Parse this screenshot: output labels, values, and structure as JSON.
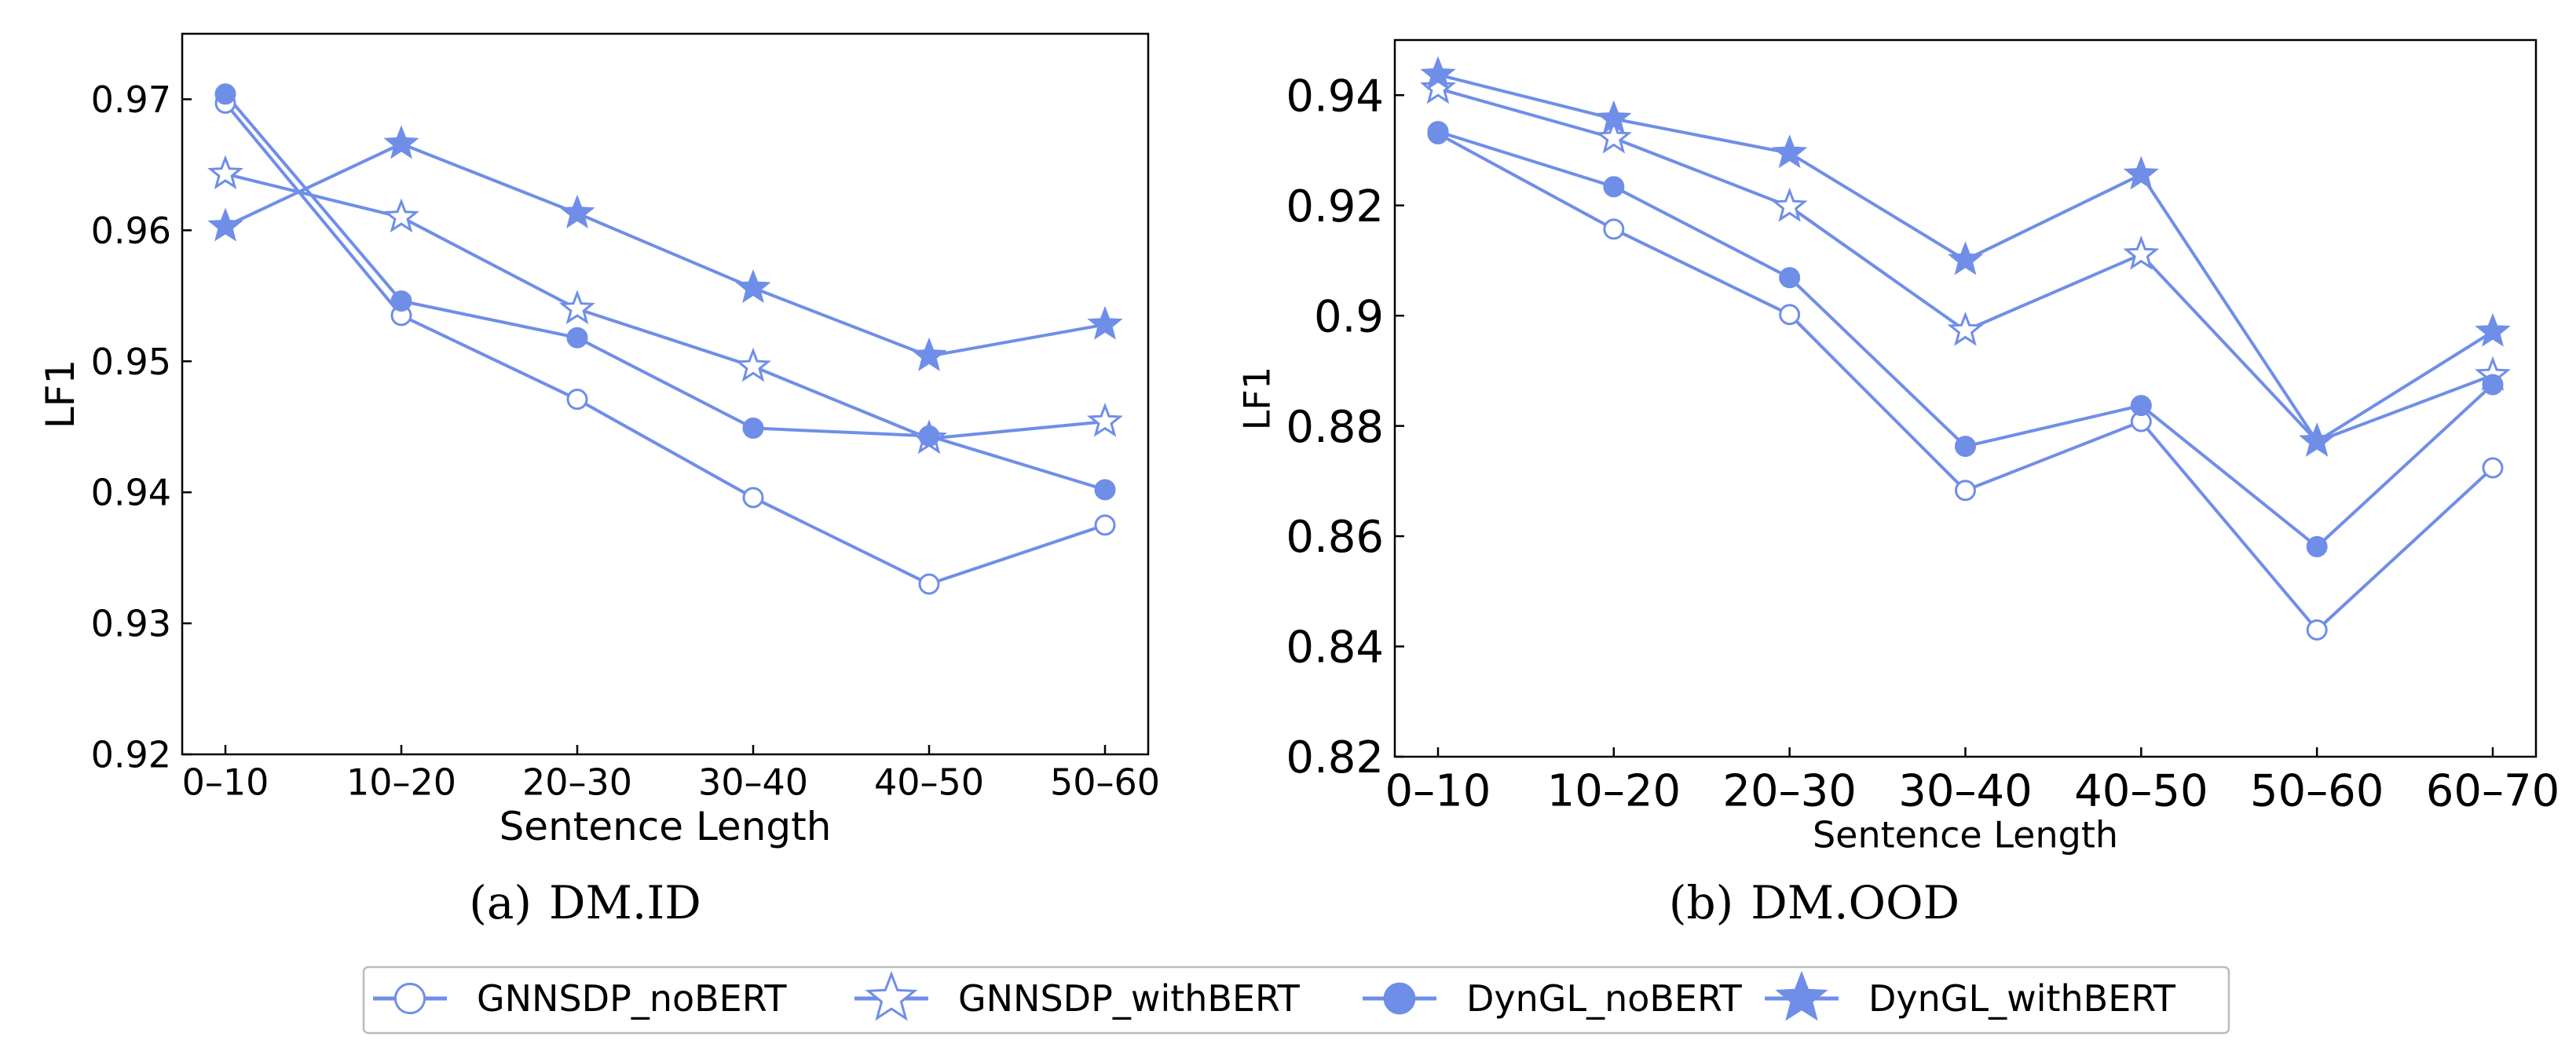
{
  "colors": {
    "series": "#6f8ee8",
    "frame": "#000000",
    "legend_border": "#bbbbbb"
  },
  "chart_data": [
    {
      "type": "line",
      "subfig_label": "(a)",
      "subfig_name": "DM.ID",
      "xlabel": "Sentence Length",
      "ylabel": "LF1",
      "categories": [
        "0–10",
        "10–20",
        "20–30",
        "30–40",
        "40–50",
        "50–60"
      ],
      "ylim": [
        0.92,
        0.975
      ],
      "yticks": [
        0.92,
        0.93,
        0.94,
        0.95,
        0.96,
        0.97
      ],
      "ytick_labels": [
        "0.92",
        "0.93",
        "0.94",
        "0.95",
        "0.96",
        "0.97"
      ],
      "series": [
        {
          "name": "GNNSDP_noBERT",
          "marker": "circle-open",
          "values": [
            0.9697,
            0.9535,
            0.9471,
            0.9396,
            0.933,
            0.9375
          ]
        },
        {
          "name": "GNNSDP_withBERT",
          "marker": "star-open",
          "values": [
            0.9643,
            0.961,
            0.954,
            0.9496,
            0.9441,
            0.9454
          ]
        },
        {
          "name": "DynGL_noBERT",
          "marker": "circle-filled",
          "values": [
            0.9704,
            0.9546,
            0.9518,
            0.9449,
            0.9443,
            0.9402
          ]
        },
        {
          "name": "DynGL_withBERT",
          "marker": "star-filled",
          "values": [
            0.9603,
            0.9666,
            0.9613,
            0.9556,
            0.9504,
            0.9528
          ]
        }
      ]
    },
    {
      "type": "line",
      "subfig_label": "(b)",
      "subfig_name": "DM.OOD",
      "xlabel": "Sentence Length",
      "ylabel": "LF1",
      "categories": [
        "0–10",
        "10–20",
        "20–30",
        "30–40",
        "40–50",
        "50–60",
        "60–70"
      ],
      "ylim": [
        0.82,
        0.95
      ],
      "yticks": [
        0.82,
        0.84,
        0.86,
        0.88,
        0.9,
        0.92,
        0.94
      ],
      "ytick_labels": [
        "0.82",
        "0.84",
        "0.86",
        "0.88",
        "0.9",
        "0.92",
        "0.94"
      ],
      "series": [
        {
          "name": "GNNSDP_noBERT",
          "marker": "circle-open",
          "values": [
            0.933,
            0.9157,
            0.9002,
            0.8683,
            0.8808,
            0.843,
            0.8724
          ]
        },
        {
          "name": "GNNSDP_withBERT",
          "marker": "star-open",
          "values": [
            0.9412,
            0.9322,
            0.9198,
            0.8973,
            0.9111,
            0.8772,
            0.8892
          ]
        },
        {
          "name": "DynGL_noBERT",
          "marker": "circle-filled",
          "values": [
            0.9334,
            0.9234,
            0.9069,
            0.8763,
            0.8837,
            0.8581,
            0.8875
          ]
        },
        {
          "name": "DynGL_withBERT",
          "marker": "star-filled",
          "values": [
            0.9437,
            0.9357,
            0.9295,
            0.9101,
            0.9256,
            0.8772,
            0.8971
          ]
        }
      ]
    }
  ],
  "legend": {
    "entries": [
      {
        "label": "GNNSDP_noBERT",
        "marker": "circle-open"
      },
      {
        "label": "GNNSDP_withBERT",
        "marker": "star-open"
      },
      {
        "label": "DynGL_noBERT",
        "marker": "circle-filled"
      },
      {
        "label": "DynGL_withBERT",
        "marker": "star-filled"
      }
    ]
  }
}
